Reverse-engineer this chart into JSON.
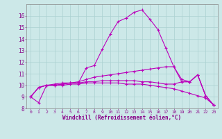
{
  "xlabel": "Windchill (Refroidissement éolien,°C)",
  "xlim": [
    -0.5,
    23.5
  ],
  "ylim": [
    8,
    17
  ],
  "yticks": [
    8,
    9,
    10,
    11,
    12,
    13,
    14,
    15,
    16
  ],
  "xticks": [
    0,
    1,
    2,
    3,
    4,
    5,
    6,
    7,
    8,
    9,
    10,
    11,
    12,
    13,
    14,
    15,
    16,
    17,
    18,
    19,
    20,
    21,
    22,
    23
  ],
  "bg_color": "#cce8e8",
  "line_color": "#bb00bb",
  "grid_color": "#aad0d0",
  "curves": [
    [
      9.0,
      8.5,
      10.0,
      10.0,
      10.1,
      10.2,
      10.2,
      11.5,
      11.7,
      13.1,
      14.4,
      15.5,
      15.8,
      16.3,
      16.5,
      15.7,
      14.8,
      13.2,
      11.6,
      10.3,
      10.3,
      10.9,
      9.1,
      8.3
    ],
    [
      9.0,
      9.8,
      10.0,
      10.1,
      10.2,
      10.2,
      10.3,
      10.5,
      10.7,
      10.8,
      10.9,
      11.0,
      11.1,
      11.2,
      11.3,
      11.4,
      11.5,
      11.6,
      11.6,
      10.5,
      10.3,
      10.9,
      9.1,
      8.3
    ],
    [
      9.0,
      9.8,
      10.0,
      10.0,
      10.0,
      10.1,
      10.1,
      10.2,
      10.2,
      10.2,
      10.2,
      10.2,
      10.1,
      10.1,
      10.1,
      10.0,
      9.9,
      9.8,
      9.7,
      9.5,
      9.3,
      9.1,
      8.9,
      8.3
    ],
    [
      9.0,
      9.8,
      10.0,
      10.0,
      10.1,
      10.2,
      10.2,
      10.3,
      10.3,
      10.4,
      10.4,
      10.4,
      10.4,
      10.4,
      10.3,
      10.3,
      10.2,
      10.1,
      10.1,
      10.3,
      10.3,
      10.9,
      9.1,
      8.3
    ]
  ]
}
